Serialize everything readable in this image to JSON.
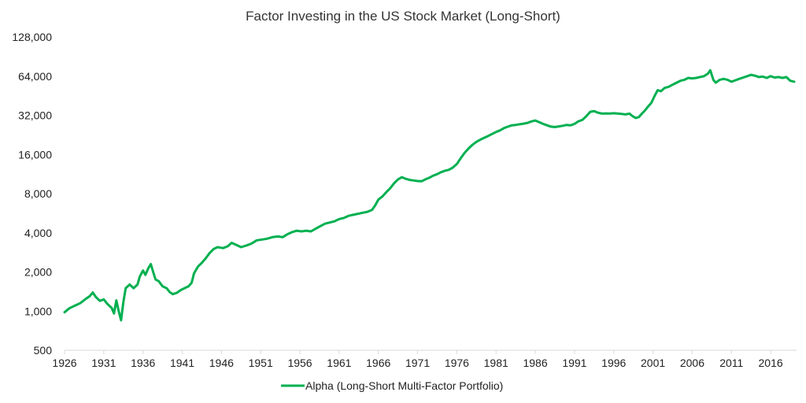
{
  "chart_data": {
    "type": "line",
    "title": "Factor Investing in the US Stock Market (Long-Short)",
    "xlabel": "",
    "ylabel": "",
    "scale_y": "log2",
    "xlim": [
      1926,
      2019.3
    ],
    "ylim": [
      500,
      128000
    ],
    "grid": false,
    "legend_position": "bottom",
    "x_ticks": [
      "1926",
      "1931",
      "1936",
      "1941",
      "1946",
      "1951",
      "1956",
      "1961",
      "1966",
      "1971",
      "1976",
      "1981",
      "1986",
      "1991",
      "1996",
      "2001",
      "2006",
      "2011",
      "2016"
    ],
    "y_ticks": [
      "500",
      "1,000",
      "2,000",
      "4,000",
      "8,000",
      "16,000",
      "32,000",
      "64,000",
      "128,000"
    ],
    "y_tick_values": [
      500,
      1000,
      2000,
      4000,
      8000,
      16000,
      32000,
      64000,
      128000
    ],
    "series": [
      {
        "name": "Alpha (Long-Short Multi-Factor Portfolio)",
        "color": "#00b050",
        "points": [
          [
            1926.0,
            980
          ],
          [
            1926.6,
            1050
          ],
          [
            1927.3,
            1100
          ],
          [
            1928.0,
            1150
          ],
          [
            1928.7,
            1240
          ],
          [
            1929.2,
            1300
          ],
          [
            1929.6,
            1390
          ],
          [
            1930.0,
            1280
          ],
          [
            1930.5,
            1200
          ],
          [
            1931.0,
            1230
          ],
          [
            1931.5,
            1130
          ],
          [
            1932.0,
            1060
          ],
          [
            1932.3,
            960
          ],
          [
            1932.6,
            1210
          ],
          [
            1932.9,
            1000
          ],
          [
            1933.2,
            850
          ],
          [
            1933.5,
            1180
          ],
          [
            1933.8,
            1500
          ],
          [
            1934.3,
            1600
          ],
          [
            1934.8,
            1500
          ],
          [
            1935.3,
            1600
          ],
          [
            1935.6,
            1850
          ],
          [
            1936.0,
            2050
          ],
          [
            1936.3,
            1900
          ],
          [
            1936.7,
            2150
          ],
          [
            1937.0,
            2300
          ],
          [
            1937.3,
            2000
          ],
          [
            1937.6,
            1750
          ],
          [
            1938.0,
            1700
          ],
          [
            1938.5,
            1550
          ],
          [
            1939.0,
            1500
          ],
          [
            1939.4,
            1400
          ],
          [
            1939.8,
            1350
          ],
          [
            1940.3,
            1380
          ],
          [
            1940.8,
            1450
          ],
          [
            1941.3,
            1500
          ],
          [
            1941.8,
            1550
          ],
          [
            1942.2,
            1650
          ],
          [
            1942.5,
            1950
          ],
          [
            1943.0,
            2200
          ],
          [
            1943.5,
            2350
          ],
          [
            1944.0,
            2550
          ],
          [
            1944.5,
            2800
          ],
          [
            1945.0,
            3000
          ],
          [
            1945.5,
            3100
          ],
          [
            1946.2,
            3050
          ],
          [
            1946.8,
            3150
          ],
          [
            1947.3,
            3350
          ],
          [
            1947.8,
            3250
          ],
          [
            1948.5,
            3100
          ],
          [
            1949.2,
            3200
          ],
          [
            1949.8,
            3300
          ],
          [
            1950.5,
            3500
          ],
          [
            1951.2,
            3550
          ],
          [
            1951.8,
            3600
          ],
          [
            1952.5,
            3700
          ],
          [
            1953.2,
            3750
          ],
          [
            1953.8,
            3700
          ],
          [
            1954.4,
            3900
          ],
          [
            1955.0,
            4050
          ],
          [
            1955.6,
            4150
          ],
          [
            1956.2,
            4100
          ],
          [
            1956.8,
            4150
          ],
          [
            1957.4,
            4100
          ],
          [
            1958.0,
            4300
          ],
          [
            1958.6,
            4500
          ],
          [
            1959.2,
            4700
          ],
          [
            1959.8,
            4800
          ],
          [
            1960.4,
            4900
          ],
          [
            1961.0,
            5100
          ],
          [
            1961.6,
            5200
          ],
          [
            1962.2,
            5400
          ],
          [
            1962.8,
            5500
          ],
          [
            1963.4,
            5600
          ],
          [
            1964.0,
            5700
          ],
          [
            1964.6,
            5800
          ],
          [
            1965.2,
            6000
          ],
          [
            1965.6,
            6500
          ],
          [
            1966.0,
            7200
          ],
          [
            1966.5,
            7600
          ],
          [
            1967.0,
            8200
          ],
          [
            1967.5,
            8800
          ],
          [
            1968.0,
            9600
          ],
          [
            1968.5,
            10300
          ],
          [
            1969.0,
            10700
          ],
          [
            1969.5,
            10400
          ],
          [
            1970.0,
            10200
          ],
          [
            1970.5,
            10100
          ],
          [
            1971.0,
            10000
          ],
          [
            1971.5,
            9950
          ],
          [
            1972.0,
            10300
          ],
          [
            1972.5,
            10600
          ],
          [
            1973.0,
            11000
          ],
          [
            1973.5,
            11300
          ],
          [
            1974.0,
            11700
          ],
          [
            1974.5,
            12000
          ],
          [
            1975.0,
            12200
          ],
          [
            1975.5,
            12700
          ],
          [
            1976.0,
            13500
          ],
          [
            1976.5,
            15000
          ],
          [
            1977.0,
            16500
          ],
          [
            1977.5,
            17800
          ],
          [
            1978.0,
            19000
          ],
          [
            1978.5,
            20000
          ],
          [
            1979.0,
            20800
          ],
          [
            1979.5,
            21500
          ],
          [
            1980.0,
            22200
          ],
          [
            1980.5,
            23000
          ],
          [
            1981.0,
            23800
          ],
          [
            1981.5,
            24500
          ],
          [
            1982.0,
            25500
          ],
          [
            1982.5,
            26200
          ],
          [
            1983.0,
            26800
          ],
          [
            1983.5,
            27000
          ],
          [
            1984.0,
            27300
          ],
          [
            1984.5,
            27600
          ],
          [
            1985.0,
            28000
          ],
          [
            1985.5,
            28700
          ],
          [
            1986.0,
            29200
          ],
          [
            1986.5,
            28300
          ],
          [
            1987.0,
            27500
          ],
          [
            1987.5,
            26800
          ],
          [
            1988.0,
            26200
          ],
          [
            1988.5,
            26000
          ],
          [
            1989.0,
            26300
          ],
          [
            1989.5,
            26600
          ],
          [
            1990.0,
            27000
          ],
          [
            1990.5,
            26800
          ],
          [
            1991.0,
            27500
          ],
          [
            1991.5,
            28800
          ],
          [
            1992.0,
            29500
          ],
          [
            1992.5,
            31500
          ],
          [
            1993.0,
            34000
          ],
          [
            1993.5,
            34500
          ],
          [
            1994.0,
            33500
          ],
          [
            1994.5,
            33000
          ],
          [
            1995.0,
            33100
          ],
          [
            1995.5,
            33000
          ],
          [
            1996.0,
            33200
          ],
          [
            1996.5,
            33000
          ],
          [
            1997.0,
            32800
          ],
          [
            1997.5,
            32500
          ],
          [
            1998.0,
            33000
          ],
          [
            1998.4,
            31500
          ],
          [
            1998.8,
            30500
          ],
          [
            1999.2,
            31000
          ],
          [
            1999.6,
            33000
          ],
          [
            2000.0,
            35000
          ],
          [
            2000.4,
            37500
          ],
          [
            2000.8,
            40000
          ],
          [
            2001.2,
            45000
          ],
          [
            2001.6,
            50000
          ],
          [
            2002.0,
            49000
          ],
          [
            2002.5,
            52000
          ],
          [
            2003.0,
            53000
          ],
          [
            2003.5,
            55000
          ],
          [
            2004.0,
            57000
          ],
          [
            2004.5,
            59000
          ],
          [
            2005.0,
            60000
          ],
          [
            2005.5,
            62000
          ],
          [
            2006.0,
            61500
          ],
          [
            2006.5,
            62000
          ],
          [
            2007.0,
            63000
          ],
          [
            2007.5,
            64000
          ],
          [
            2008.0,
            67000
          ],
          [
            2008.3,
            71000
          ],
          [
            2008.7,
            60000
          ],
          [
            2009.0,
            57000
          ],
          [
            2009.5,
            60000
          ],
          [
            2010.0,
            61000
          ],
          [
            2010.5,
            60000
          ],
          [
            2011.0,
            58000
          ],
          [
            2011.5,
            59500
          ],
          [
            2012.0,
            61000
          ],
          [
            2012.5,
            62500
          ],
          [
            2013.0,
            64000
          ],
          [
            2013.5,
            65500
          ],
          [
            2014.0,
            64500
          ],
          [
            2014.5,
            63000
          ],
          [
            2015.0,
            63500
          ],
          [
            2015.5,
            62000
          ],
          [
            2016.0,
            64000
          ],
          [
            2016.5,
            62500
          ],
          [
            2017.0,
            63000
          ],
          [
            2017.5,
            62000
          ],
          [
            2018.0,
            63000
          ],
          [
            2018.5,
            59000
          ],
          [
            2019.0,
            58000
          ]
        ]
      }
    ]
  }
}
